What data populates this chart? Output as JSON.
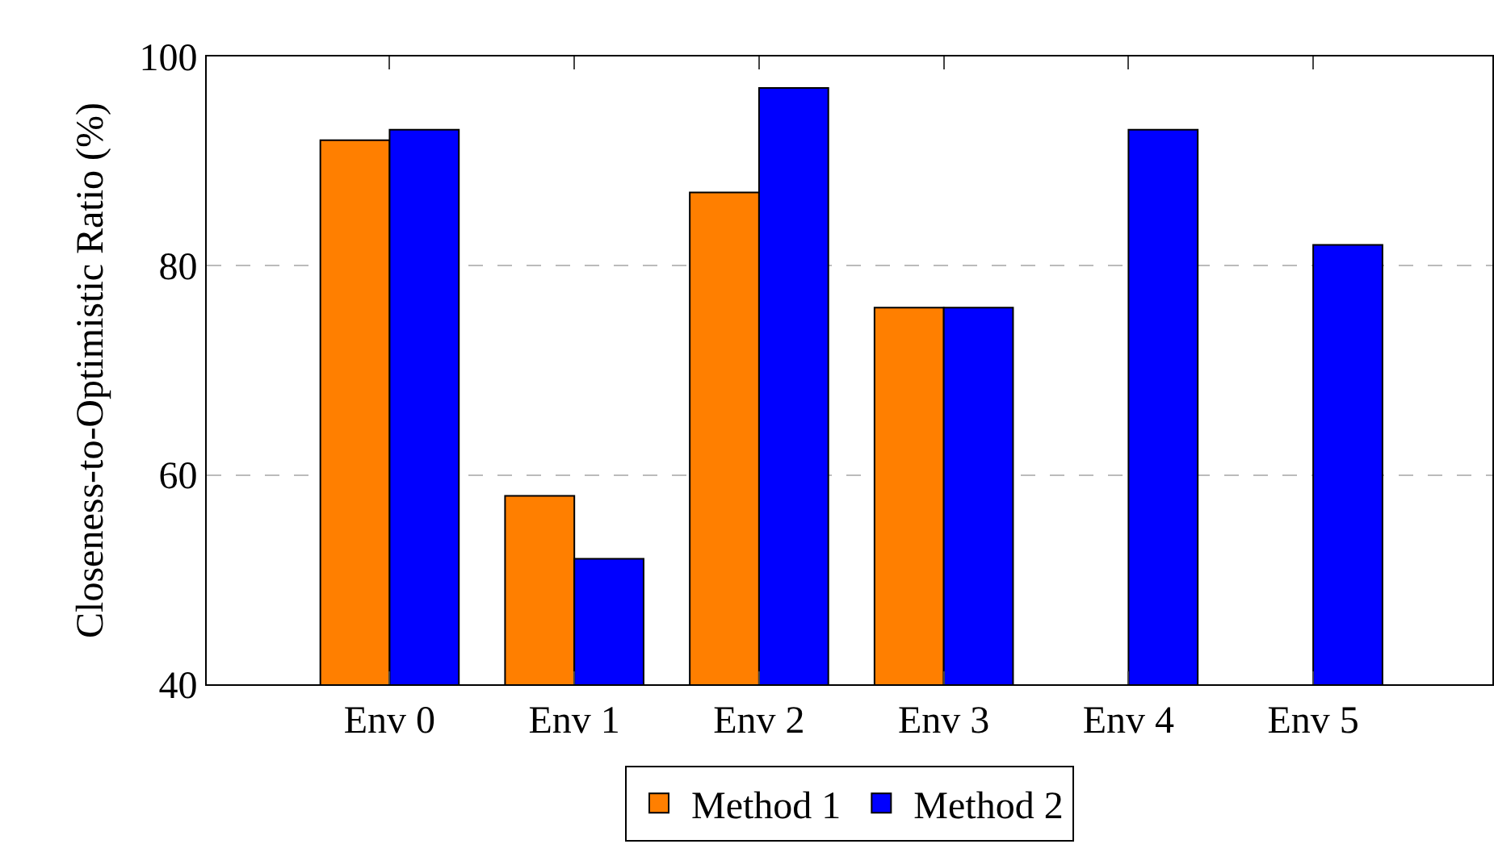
{
  "chart_data": {
    "type": "bar",
    "ylabel": "Closeness-to-Optimistic Ratio (%)",
    "categories": [
      "Env 0",
      "Env 1",
      "Env 2",
      "Env 3",
      "Env 4",
      "Env 5"
    ],
    "series": [
      {
        "name": "Method 1",
        "color": "#ff7f00",
        "values": [
          92,
          58,
          87,
          76,
          null,
          null
        ]
      },
      {
        "name": "Method 2",
        "color": "#0000ff",
        "values": [
          93,
          52,
          97,
          76,
          93,
          82
        ]
      }
    ],
    "ylim": [
      40,
      100
    ],
    "yticks": [
      40,
      60,
      80,
      100
    ],
    "grid": "y",
    "legend": "bottom"
  }
}
